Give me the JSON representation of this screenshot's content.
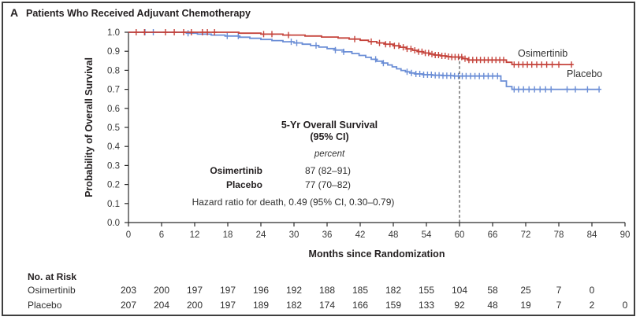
{
  "figure": {
    "panel_label": "A",
    "title": "Patients Who Received Adjuvant Chemotherapy"
  },
  "chart_data": {
    "type": "line",
    "subtype": "kaplan-meier-step",
    "title": "Patients Who Received Adjuvant Chemotherapy",
    "xlabel": "Months since Randomization",
    "ylabel": "Probability of Overall Survival",
    "xlim": [
      0,
      90
    ],
    "ylim": [
      0.0,
      1.0
    ],
    "x_ticks": [
      0,
      6,
      12,
      18,
      24,
      30,
      36,
      42,
      48,
      54,
      60,
      66,
      72,
      78,
      84,
      90
    ],
    "y_tick_labels": [
      "1.0",
      "0.9",
      "0.8",
      "0.7",
      "0.6",
      "0.5",
      "0.4",
      "0.3",
      "0.2",
      "0.1",
      "0.0"
    ],
    "grid": "off",
    "reference_line_x": 60,
    "reference_line_top_probability": 0.872,
    "series": [
      {
        "name": "Osimertinib",
        "color": "#c5443c",
        "five_yr_os_percent": "87 (82–91)",
        "points": [
          [
            0,
            1.0
          ],
          [
            20,
            0.995
          ],
          [
            24,
            0.99
          ],
          [
            28,
            0.985
          ],
          [
            32,
            0.98
          ],
          [
            35,
            0.975
          ],
          [
            38,
            0.97
          ],
          [
            40,
            0.964
          ],
          [
            42,
            0.958
          ],
          [
            43.5,
            0.951
          ],
          [
            45,
            0.944
          ],
          [
            46.5,
            0.937
          ],
          [
            48,
            0.929
          ],
          [
            49.2,
            0.921
          ],
          [
            50.4,
            0.913
          ],
          [
            51.5,
            0.905
          ],
          [
            52.5,
            0.898
          ],
          [
            53.5,
            0.891
          ],
          [
            54.5,
            0.885
          ],
          [
            55.5,
            0.88
          ],
          [
            56.5,
            0.876
          ],
          [
            57.5,
            0.872
          ],
          [
            58.5,
            0.87
          ],
          [
            60.5,
            0.861
          ],
          [
            61.5,
            0.854
          ],
          [
            68.5,
            0.842
          ],
          [
            69.5,
            0.83
          ],
          [
            80.5,
            0.83
          ]
        ],
        "censor_months": [
          1.4,
          2.9,
          6.7,
          8.3,
          10,
          11.4,
          13.4,
          14.3,
          15.6,
          24.5,
          26,
          29,
          41,
          44,
          45.5,
          46.6,
          47.4,
          48.2,
          49,
          49.8,
          50.5,
          51.2,
          51.9,
          52.6,
          53.2,
          53.8,
          54.4,
          55,
          55.6,
          56.2,
          56.8,
          57.4,
          58,
          58.6,
          59.2,
          59.8,
          60.4,
          61,
          61.7,
          62.4,
          63.1,
          63.8,
          64.5,
          65.2,
          65.9,
          66.6,
          67.3,
          68,
          69.9,
          70.7,
          71.5,
          72.3,
          73.1,
          74,
          74.9,
          75.8,
          76.8,
          78,
          80.3
        ]
      },
      {
        "name": "Placebo",
        "color": "#6b8ed6",
        "five_yr_os_percent": "77 (70–82)",
        "points": [
          [
            0,
            1.0
          ],
          [
            10.5,
            0.995
          ],
          [
            12.5,
            0.99
          ],
          [
            15,
            0.985
          ],
          [
            17.5,
            0.98
          ],
          [
            20,
            0.974
          ],
          [
            22,
            0.968
          ],
          [
            24,
            0.962
          ],
          [
            26,
            0.956
          ],
          [
            28,
            0.95
          ],
          [
            30,
            0.944
          ],
          [
            31.5,
            0.937
          ],
          [
            33,
            0.93
          ],
          [
            34.5,
            0.922
          ],
          [
            36,
            0.914
          ],
          [
            37.5,
            0.906
          ],
          [
            39,
            0.897
          ],
          [
            40.5,
            0.888
          ],
          [
            41.8,
            0.878
          ],
          [
            43,
            0.868
          ],
          [
            44,
            0.858
          ],
          [
            45,
            0.848
          ],
          [
            46,
            0.838
          ],
          [
            47,
            0.828
          ],
          [
            47.8,
            0.818
          ],
          [
            48.6,
            0.808
          ],
          [
            49.4,
            0.799
          ],
          [
            50.2,
            0.792
          ],
          [
            51,
            0.786
          ],
          [
            52,
            0.781
          ],
          [
            53.5,
            0.777
          ],
          [
            55,
            0.774
          ],
          [
            57,
            0.772
          ],
          [
            59,
            0.77
          ],
          [
            67.5,
            0.744
          ],
          [
            68.5,
            0.715
          ],
          [
            69.5,
            0.7
          ],
          [
            85.3,
            0.7
          ]
        ],
        "censor_months": [
          3,
          4.5,
          10.8,
          17.9,
          19.9,
          29.5,
          30.5,
          34,
          37.5,
          39,
          44.8,
          46.2,
          50.5,
          51.3,
          52.1,
          52.8,
          53.5,
          54.2,
          54.9,
          55.6,
          56.3,
          57,
          57.7,
          58.4,
          59.1,
          59.8,
          60.5,
          61.2,
          62,
          62.8,
          63.6,
          64.4,
          65.2,
          66,
          66.9,
          69.9,
          70.7,
          71.6,
          72.6,
          73.6,
          74.6,
          75.6,
          76.6,
          79.5,
          81,
          83.2,
          85.3
        ]
      }
    ],
    "annotation": {
      "heading_line1": "5-Yr Overall Survival",
      "heading_line2": "(95% CI)",
      "unit_label": "percent",
      "rows": [
        {
          "name": "Osimertinib",
          "value": "87 (82–91)"
        },
        {
          "name": "Placebo",
          "value": "77 (70–82)"
        }
      ],
      "hazard_text": "Hazard ratio for death, 0.49 (95% CI, 0.30–0.79)"
    },
    "at_risk": {
      "header": "No. at Risk",
      "rows": [
        {
          "name": "Osimertinib",
          "values": [
            203,
            200,
            197,
            197,
            196,
            192,
            188,
            185,
            182,
            155,
            104,
            58,
            25,
            7,
            0
          ]
        },
        {
          "name": "Placebo",
          "values": [
            207,
            204,
            200,
            197,
            189,
            182,
            174,
            166,
            159,
            133,
            92,
            48,
            19,
            7,
            2,
            0
          ]
        }
      ]
    }
  }
}
